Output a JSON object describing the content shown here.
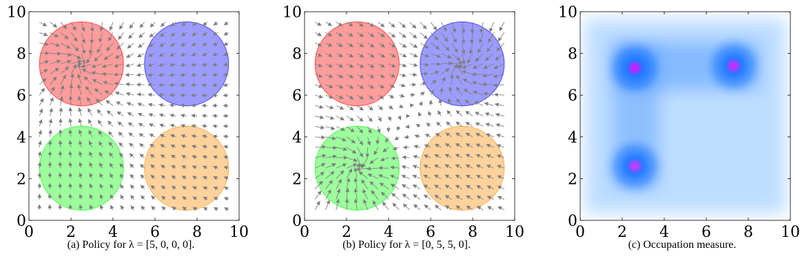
{
  "chart_data": [
    {
      "type": "quiver",
      "caption": "(a) Policy for λ = [5, 0, 0, 0].",
      "xlim": [
        0,
        10
      ],
      "ylim": [
        0,
        10
      ],
      "xticks": [
        "0",
        "2",
        "4",
        "6",
        "8",
        "10"
      ],
      "yticks": [
        "0",
        "2",
        "4",
        "6",
        "8",
        "10"
      ],
      "grid": false,
      "regions": [
        {
          "cx": 2.5,
          "cy": 7.5,
          "r": 2.0,
          "color": "#ff5a5a"
        },
        {
          "cx": 7.5,
          "cy": 7.5,
          "r": 2.0,
          "color": "#5a5aff"
        },
        {
          "cx": 2.5,
          "cy": 2.5,
          "r": 2.0,
          "color": "#5aff5a"
        },
        {
          "cx": 7.5,
          "cy": 2.5,
          "r": 2.0,
          "color": "#ffb45a"
        }
      ],
      "attractors": [
        {
          "cx": 2.5,
          "cy": 7.5
        }
      ],
      "arrow_color": "#7f7f7f"
    },
    {
      "type": "quiver",
      "caption": "(b) Policy for λ = [0, 5, 5, 0].",
      "xlim": [
        0,
        10
      ],
      "ylim": [
        0,
        10
      ],
      "xticks": [
        "0",
        "2",
        "4",
        "6",
        "8",
        "10"
      ],
      "yticks": [
        "0",
        "2",
        "4",
        "6",
        "8",
        "10"
      ],
      "grid": false,
      "regions": [
        {
          "cx": 2.5,
          "cy": 7.5,
          "r": 2.0,
          "color": "#ff5a5a"
        },
        {
          "cx": 7.5,
          "cy": 7.5,
          "r": 2.0,
          "color": "#5a5aff"
        },
        {
          "cx": 2.5,
          "cy": 2.5,
          "r": 2.0,
          "color": "#5aff5a"
        },
        {
          "cx": 7.5,
          "cy": 2.5,
          "r": 2.0,
          "color": "#ffb45a"
        }
      ],
      "attractors": [
        {
          "cx": 7.5,
          "cy": 7.5
        },
        {
          "cx": 2.5,
          "cy": 2.5
        }
      ],
      "arrow_color": "#7f7f7f"
    },
    {
      "type": "heatmap",
      "caption": "(c) Occupation measure.",
      "xlim": [
        0,
        10
      ],
      "ylim": [
        0,
        10
      ],
      "xticks": [
        "0",
        "2",
        "4",
        "6",
        "8",
        "10"
      ],
      "yticks": [
        "0",
        "2",
        "4",
        "6",
        "8",
        "10"
      ],
      "grid": false,
      "peaks": [
        {
          "cx": 2.6,
          "cy": 7.3,
          "intensity": 1.0
        },
        {
          "cx": 7.3,
          "cy": 7.4,
          "intensity": 0.85
        },
        {
          "cx": 2.6,
          "cy": 2.6,
          "intensity": 0.75
        }
      ],
      "colormap": [
        "#ffffff",
        "#a9d3ff",
        "#1e78ff",
        "#ff00ff"
      ]
    }
  ]
}
